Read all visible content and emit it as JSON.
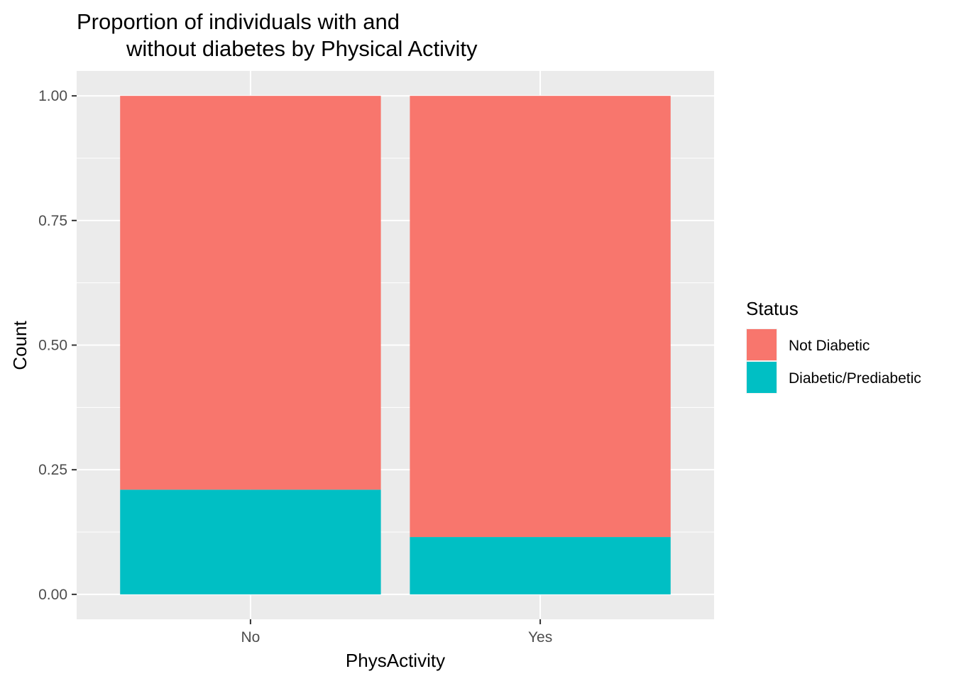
{
  "chart_data": {
    "type": "bar",
    "stacked": true,
    "title_lines": [
      "Proportion of individuals with and",
      "without diabetes by Physical Activity"
    ],
    "xlabel": "PhysActivity",
    "ylabel": "Count",
    "categories": [
      "No",
      "Yes"
    ],
    "series": [
      {
        "name": "Diabetic/Prediabetic",
        "color": "#00BFC4",
        "values": [
          0.21,
          0.115
        ]
      },
      {
        "name": "Not Diabetic",
        "color": "#F8766D",
        "values": [
          0.79,
          0.885
        ]
      }
    ],
    "ylim": [
      -0.05,
      1.05
    ],
    "yticks": [
      0.0,
      0.25,
      0.5,
      0.75,
      1.0
    ],
    "ytick_labels": [
      "0.00",
      "0.25",
      "0.50",
      "0.75",
      "1.00"
    ],
    "grid": true,
    "legend": {
      "title": "Status",
      "position": "right",
      "entries": [
        {
          "label": "Not Diabetic",
          "color": "#F8766D"
        },
        {
          "label": "Diabetic/Prediabetic",
          "color": "#00BFC4"
        }
      ]
    },
    "panel_background": "#EBEBEB",
    "grid_color": "#FFFFFF"
  }
}
